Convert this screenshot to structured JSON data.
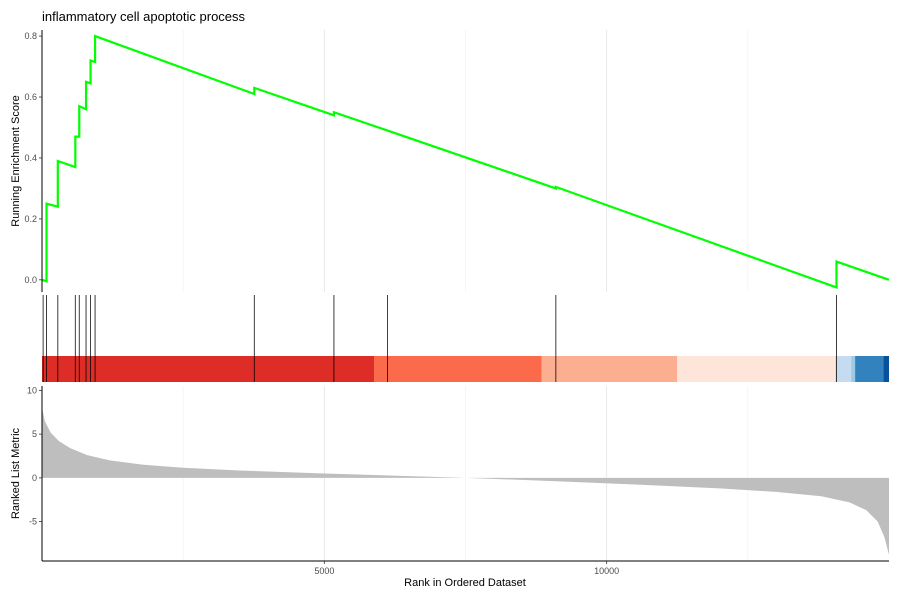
{
  "chart_data": {
    "type": "line",
    "title": "inflammatory cell apoptotic process",
    "xlabel": "Rank in Ordered Dataset",
    "xlim": [
      0,
      15000
    ],
    "x_ticks": [
      5000,
      10000
    ],
    "grid": "vertical major and minor lines",
    "panels": [
      {
        "name": "running-enrichment",
        "ylabel": "Running Enrichment Score",
        "ylim": [
          -0.04,
          0.82
        ],
        "y_ticks": [
          0.0,
          0.2,
          0.4,
          0.6,
          0.8
        ],
        "line_color": "#00ff00",
        "points": [
          [
            0,
            0.0
          ],
          [
            80,
            -0.005
          ],
          [
            80,
            0.25
          ],
          [
            280,
            0.24
          ],
          [
            280,
            0.39
          ],
          [
            590,
            0.37
          ],
          [
            590,
            0.47
          ],
          [
            660,
            0.47
          ],
          [
            660,
            0.57
          ],
          [
            780,
            0.56
          ],
          [
            780,
            0.65
          ],
          [
            860,
            0.645
          ],
          [
            860,
            0.72
          ],
          [
            940,
            0.715
          ],
          [
            940,
            0.8
          ],
          [
            3760,
            0.61
          ],
          [
            3760,
            0.63
          ],
          [
            5170,
            0.54
          ],
          [
            5170,
            0.55
          ],
          [
            6120,
            0.49
          ],
          [
            6120,
            0.49
          ],
          [
            9100,
            0.3
          ],
          [
            9100,
            0.305
          ],
          [
            14070,
            -0.025
          ],
          [
            14070,
            0.06
          ],
          [
            15000,
            0.0
          ]
        ]
      },
      {
        "name": "gene-hits",
        "hit_positions": [
          20,
          80,
          280,
          590,
          660,
          780,
          860,
          940,
          3760,
          5170,
          6120,
          9100,
          14070
        ],
        "rank_color_bands": [
          {
            "from": 0,
            "to": 5880,
            "color": "#de2d26"
          },
          {
            "from": 5880,
            "to": 8850,
            "color": "#fb6a4a"
          },
          {
            "from": 8850,
            "to": 11250,
            "color": "#fcae91"
          },
          {
            "from": 11250,
            "to": 14050,
            "color": "#fee5d9"
          },
          {
            "from": 14050,
            "to": 14330,
            "color": "#c6dbef"
          },
          {
            "from": 14330,
            "to": 14400,
            "color": "#9ecae1"
          },
          {
            "from": 14400,
            "to": 14900,
            "color": "#3182bd"
          },
          {
            "from": 14900,
            "to": 15000,
            "color": "#08519c"
          }
        ]
      },
      {
        "name": "ranked-list-metric",
        "ylabel": "Ranked List Metric",
        "ylim": [
          -9.5,
          10.5
        ],
        "y_ticks": [
          -5,
          0,
          5,
          10
        ],
        "area_color": "#bebebe",
        "curve": [
          [
            0,
            8.0
          ],
          [
            50,
            6.5
          ],
          [
            150,
            5.2
          ],
          [
            300,
            4.2
          ],
          [
            500,
            3.4
          ],
          [
            800,
            2.6
          ],
          [
            1200,
            2.0
          ],
          [
            1800,
            1.5
          ],
          [
            2500,
            1.15
          ],
          [
            3500,
            0.85
          ],
          [
            5000,
            0.5
          ],
          [
            6500,
            0.2
          ],
          [
            7300,
            0.05
          ],
          [
            7500,
            0.0
          ],
          [
            9000,
            -0.35
          ],
          [
            10500,
            -0.75
          ],
          [
            12000,
            -1.2
          ],
          [
            13000,
            -1.6
          ],
          [
            13800,
            -2.1
          ],
          [
            14300,
            -2.8
          ],
          [
            14600,
            -3.7
          ],
          [
            14800,
            -5.0
          ],
          [
            14920,
            -6.8
          ],
          [
            15000,
            -8.8
          ]
        ]
      }
    ]
  }
}
